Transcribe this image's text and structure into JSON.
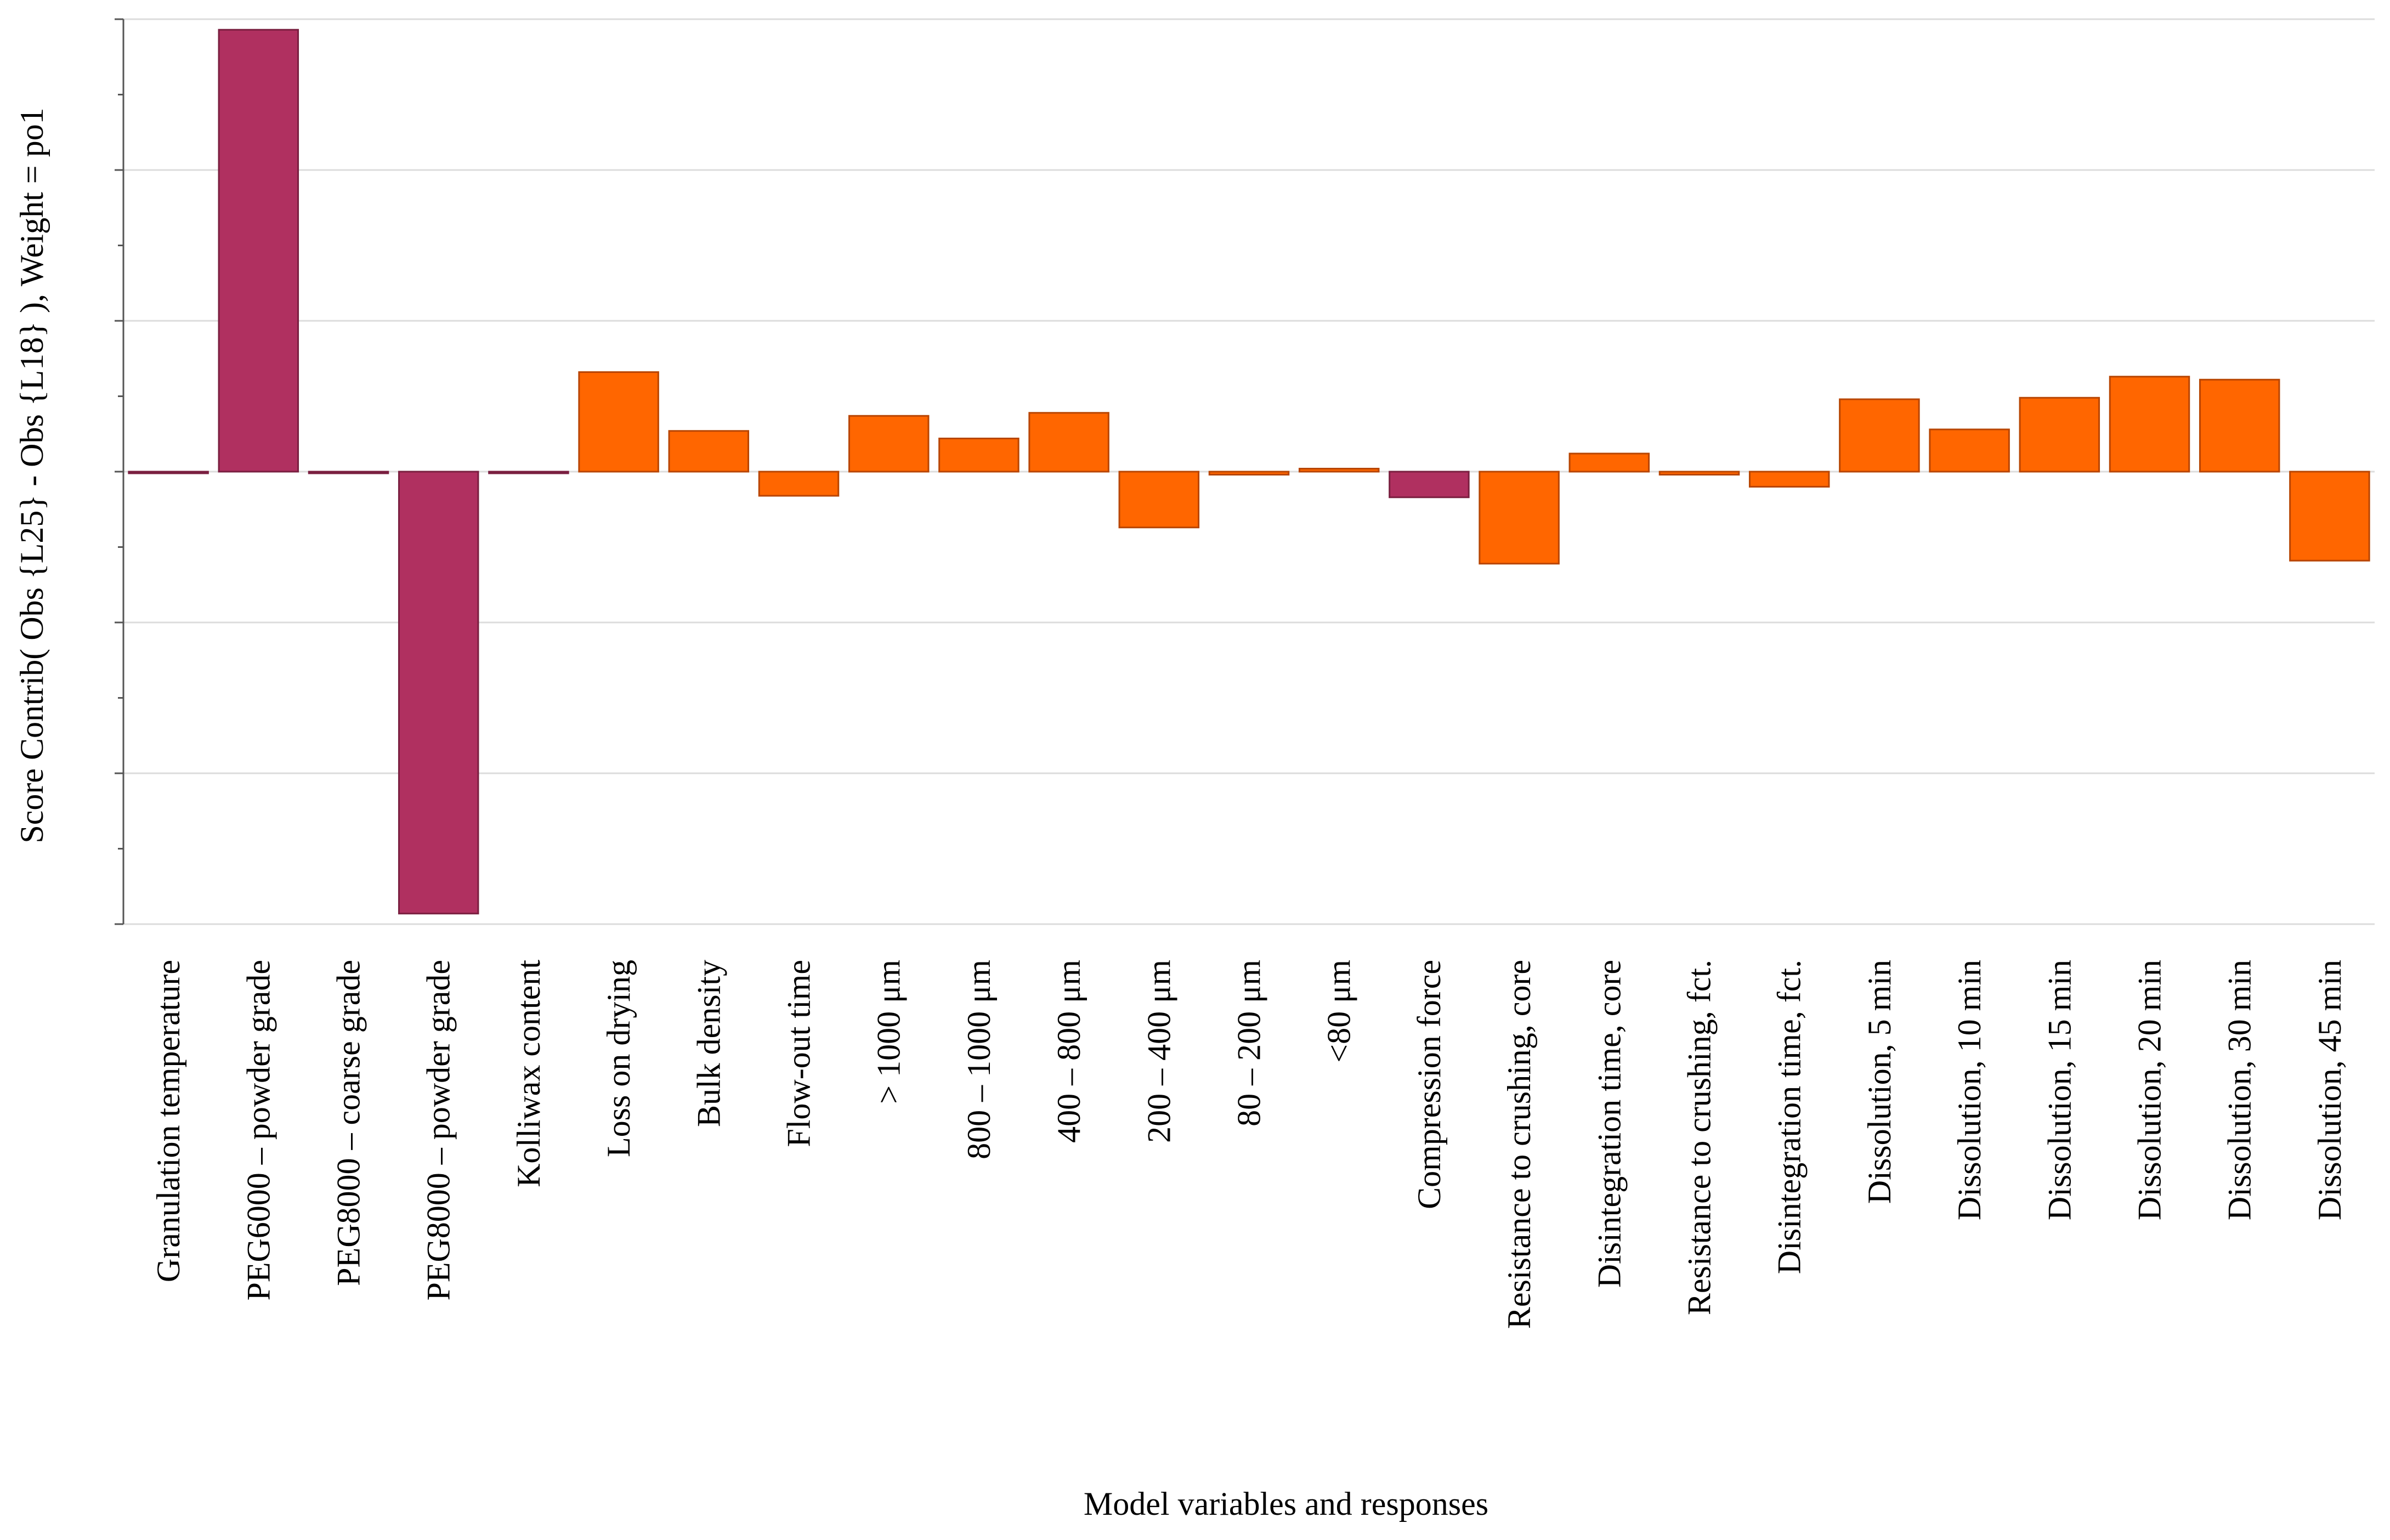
{
  "chart_data": {
    "type": "bar",
    "title": "",
    "xlabel": "Model variables and responses",
    "ylabel": "Score Contrib( Obs {L25} - Obs {L18} ), Weight = po1",
    "ylim": [
      -3,
      3
    ],
    "grid": true,
    "legend": "none",
    "colors": {
      "factor": "#b03060",
      "factor_stroke": "#7a1f40",
      "response": "#ff6600",
      "response_stroke": "#b84500",
      "grid": "#dcdcdc",
      "axis": "#555555"
    },
    "categories": [
      "Granulation temperature",
      "PEG6000 – powder grade",
      "PEG8000 – coarse grade",
      "PEG8000 – powder grade",
      "Kolliwax content",
      "Loss on drying",
      "Bulk density",
      "Flow-out time",
      "> 1000 μm",
      "800 – 1000 μm",
      "400 – 800 μm",
      "200 – 400 μm",
      "80 – 200 μm",
      "<80 μm",
      "Compression force",
      "Resistance to crushing, core",
      "Disintegration time, core",
      "Resistance to crushing, fct.",
      "Disintegration time, fct.",
      "Dissolution, 5 min",
      "Dissolution, 10 min",
      "Dissolution, 15 min",
      "Dissolution, 20 min",
      "Dissolution, 30 min",
      "Dissolution, 45 min"
    ],
    "values": [
      -0.01,
      2.93,
      -0.01,
      -2.93,
      -0.01,
      0.66,
      0.27,
      -0.16,
      0.37,
      0.22,
      0.39,
      -0.37,
      -0.02,
      0.02,
      -0.17,
      -0.61,
      0.12,
      -0.02,
      -0.1,
      0.48,
      0.28,
      0.49,
      0.63,
      0.61,
      -0.59
    ],
    "groups": [
      "factor",
      "factor",
      "factor",
      "factor",
      "factor",
      "response",
      "response",
      "response",
      "response",
      "response",
      "response",
      "response",
      "response",
      "response",
      "factor",
      "response",
      "response",
      "response",
      "response",
      "response",
      "response",
      "response",
      "response",
      "response",
      "response"
    ]
  }
}
